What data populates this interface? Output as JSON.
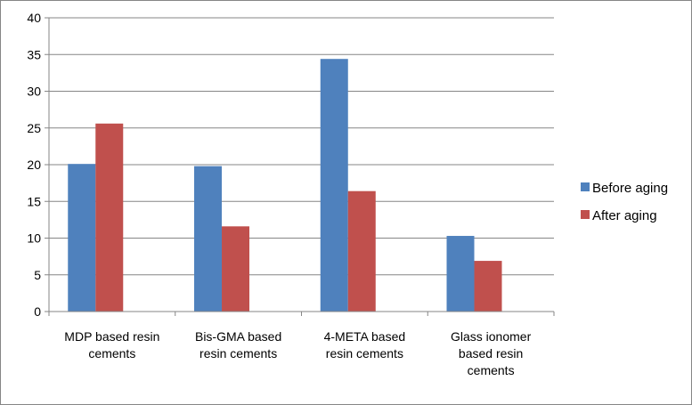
{
  "chart_data": {
    "type": "bar",
    "title": "",
    "xlabel": "",
    "ylabel": "",
    "ylim": [
      0,
      40
    ],
    "yticks": [
      0,
      5,
      10,
      15,
      20,
      25,
      30,
      35,
      40
    ],
    "grid": true,
    "legend_position": "right",
    "categories": [
      [
        "MDP based resin",
        "cements"
      ],
      [
        "Bis-GMA based",
        "resin cements"
      ],
      [
        "4-META based",
        "resin cements"
      ],
      [
        "Glass ionomer",
        "based resin",
        "cements"
      ]
    ],
    "series": [
      {
        "name": "Before aging",
        "color": "#4F81BD",
        "values": [
          20.1,
          19.8,
          34.4,
          10.3
        ]
      },
      {
        "name": "After aging",
        "color": "#C0504D",
        "values": [
          25.6,
          11.6,
          16.4,
          6.9
        ]
      }
    ]
  }
}
